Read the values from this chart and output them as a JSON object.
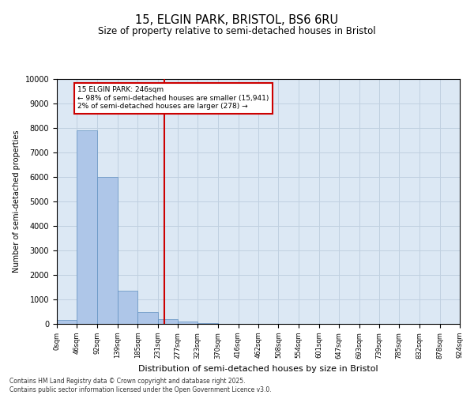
{
  "title_line1": "15, ELGIN PARK, BRISTOL, BS6 6RU",
  "title_line2": "Size of property relative to semi-detached houses in Bristol",
  "xlabel": "Distribution of semi-detached houses by size in Bristol",
  "ylabel": "Number of semi-detached properties",
  "bin_labels": [
    "0sqm",
    "46sqm",
    "92sqm",
    "139sqm",
    "185sqm",
    "231sqm",
    "277sqm",
    "323sqm",
    "370sqm",
    "416sqm",
    "462sqm",
    "508sqm",
    "554sqm",
    "601sqm",
    "647sqm",
    "693sqm",
    "739sqm",
    "785sqm",
    "832sqm",
    "878sqm",
    "924sqm"
  ],
  "bar_heights": [
    150,
    7900,
    6000,
    1350,
    500,
    200,
    100,
    30,
    5,
    0,
    0,
    0,
    0,
    0,
    0,
    0,
    0,
    0,
    0,
    0,
    0
  ],
  "bin_edges": [
    0,
    46,
    92,
    139,
    185,
    231,
    277,
    323,
    370,
    416,
    462,
    508,
    554,
    601,
    647,
    693,
    739,
    785,
    832,
    878,
    924
  ],
  "bar_color": "#aec6e8",
  "bar_edge_color": "#6090c0",
  "grid_color": "#c0d0e0",
  "bg_color": "#dce8f4",
  "vline_x": 246,
  "vline_color": "#cc0000",
  "annotation_box_color": "#cc0000",
  "annotation_text_line1": "15 ELGIN PARK: 246sqm",
  "annotation_text_line2": "← 98% of semi-detached houses are smaller (15,941)",
  "annotation_text_line3": "2% of semi-detached houses are larger (278) →",
  "ylim": [
    0,
    10000
  ],
  "yticks": [
    0,
    1000,
    2000,
    3000,
    4000,
    5000,
    6000,
    7000,
    8000,
    9000,
    10000
  ],
  "footer_line1": "Contains HM Land Registry data © Crown copyright and database right 2025.",
  "footer_line2": "Contains public sector information licensed under the Open Government Licence v3.0."
}
